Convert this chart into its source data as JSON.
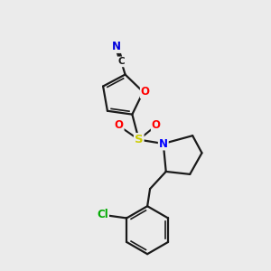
{
  "bg_color": "#ebebeb",
  "bond_color": "#1a1a1a",
  "atom_colors": {
    "O": "#ff0000",
    "N": "#0000ff",
    "S": "#cccc00",
    "C": "#1a1a1a",
    "Cl": "#00aa00"
  },
  "figsize": [
    3.0,
    3.0
  ],
  "dpi": 100
}
